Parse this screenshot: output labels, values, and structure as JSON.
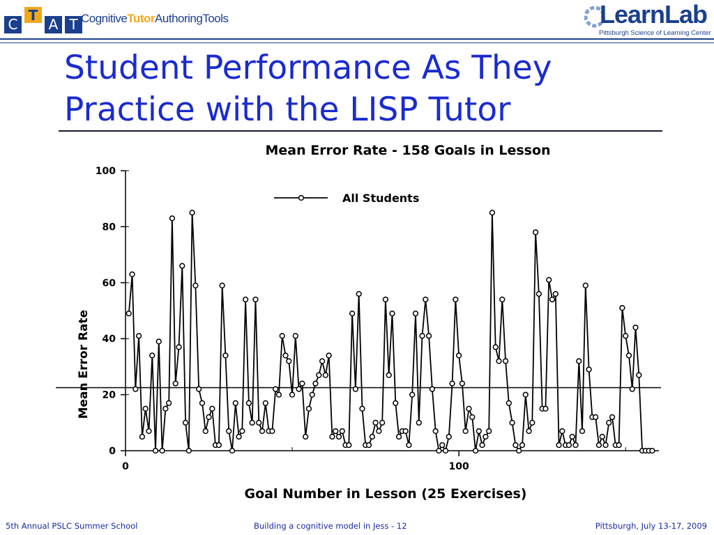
{
  "header": {
    "ctat_letters": [
      "C",
      "T",
      "A",
      "T"
    ],
    "ctat_suite": {
      "part1": "Cognitive",
      "part2": "Tutor",
      "part3": "AuthoringTools"
    },
    "learnlab_word": "LearnLab",
    "learnlab_subtitle": "Pittsburgh Science of Learning Center"
  },
  "slide": {
    "title": "Student Performance As They\nPractice with the LISP Tutor"
  },
  "colors": {
    "title": "#1a2bd0",
    "brand_blue": "#1b3f8e",
    "brand_gold": "#f1a81b",
    "footer": "#1a2b9f"
  },
  "chart_data": {
    "type": "line",
    "title": "Mean Error Rate - 158 Goals in Lesson",
    "xlabel": "Goal Number in Lesson (25 Exercises)",
    "ylabel": "Mean Error Rate",
    "xlim": [
      0,
      160
    ],
    "ylim": [
      0,
      100
    ],
    "x_ticks": [
      0,
      100
    ],
    "y_ticks": [
      0,
      20,
      40,
      60,
      80,
      100
    ],
    "grid": false,
    "legend": "top",
    "reference_line_y": 22.5,
    "series": [
      {
        "name": "All Students",
        "x": [
          1,
          2,
          3,
          4,
          5,
          6,
          7,
          8,
          9,
          10,
          11,
          12,
          13,
          14,
          15,
          16,
          17,
          18,
          19,
          20,
          21,
          22,
          23,
          24,
          25,
          26,
          27,
          28,
          29,
          30,
          31,
          32,
          33,
          34,
          35,
          36,
          37,
          38,
          39,
          40,
          41,
          42,
          43,
          44,
          45,
          46,
          47,
          48,
          49,
          50,
          51,
          52,
          53,
          54,
          55,
          56,
          57,
          58,
          59,
          60,
          61,
          62,
          63,
          64,
          65,
          66,
          67,
          68,
          69,
          70,
          71,
          72,
          73,
          74,
          75,
          76,
          77,
          78,
          79,
          80,
          81,
          82,
          83,
          84,
          85,
          86,
          87,
          88,
          89,
          90,
          91,
          92,
          93,
          94,
          95,
          96,
          97,
          98,
          99,
          100,
          101,
          102,
          103,
          104,
          105,
          106,
          107,
          108,
          109,
          110,
          111,
          112,
          113,
          114,
          115,
          116,
          117,
          118,
          119,
          120,
          121,
          122,
          123,
          124,
          125,
          126,
          127,
          128,
          129,
          130,
          131,
          132,
          133,
          134,
          135,
          136,
          137,
          138,
          139,
          140,
          141,
          142,
          143,
          144,
          145,
          146,
          147,
          148,
          149,
          150,
          151,
          152,
          153,
          154,
          155,
          156,
          157,
          158
        ],
        "y": [
          49,
          63,
          22,
          41,
          5,
          15,
          7,
          34,
          0,
          39,
          0,
          15,
          17,
          83,
          24,
          37,
          66,
          10,
          0,
          85,
          59,
          22,
          17,
          7,
          12,
          15,
          2,
          2,
          59,
          34,
          7,
          0,
          17,
          5,
          7,
          54,
          17,
          10,
          54,
          10,
          7,
          17,
          7,
          7,
          22,
          20,
          41,
          34,
          32,
          20,
          41,
          22,
          24,
          5,
          15,
          20,
          24,
          27,
          32,
          27,
          34,
          5,
          7,
          5,
          7,
          2,
          2,
          49,
          22,
          56,
          15,
          2,
          2,
          5,
          10,
          7,
          10,
          54,
          27,
          49,
          17,
          5,
          7,
          7,
          2,
          20,
          49,
          10,
          41,
          54,
          41,
          22,
          7,
          0,
          2,
          0,
          5,
          24,
          54,
          34,
          24,
          7,
          15,
          12,
          0,
          7,
          2,
          5,
          7,
          85,
          37,
          32,
          54,
          32,
          17,
          10,
          2,
          0,
          2,
          20,
          7,
          10,
          78,
          56,
          15,
          15,
          61,
          54,
          56,
          2,
          7,
          2,
          2,
          5,
          2,
          32,
          7,
          59,
          29,
          12,
          12,
          2,
          5,
          2,
          10,
          12,
          2,
          2,
          51,
          41,
          34,
          22,
          44,
          27,
          0,
          0,
          0,
          0
        ]
      }
    ]
  },
  "footer": {
    "left": "5th Annual PSLC Summer School",
    "center": "Building a cognitive model in Jess - 12",
    "right": "Pittsburgh, July 13-17, 2009"
  }
}
